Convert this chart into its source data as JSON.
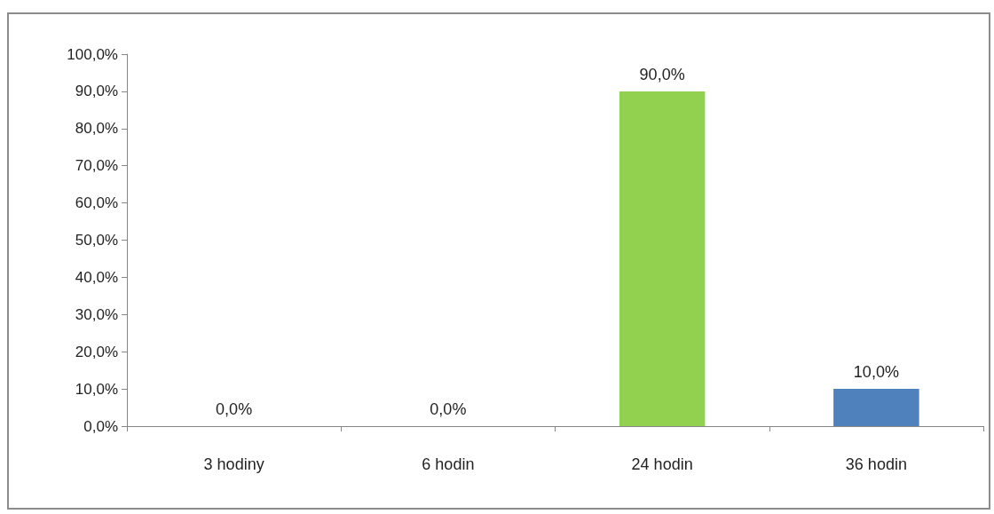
{
  "chart_data": {
    "type": "bar",
    "categories": [
      "3 hodiny",
      "6 hodin",
      "24 hodin",
      "36 hodin"
    ],
    "values": [
      0,
      0,
      90,
      10
    ],
    "colors": [
      "#92d050",
      "#92d050",
      "#92d050",
      "#4f81bd"
    ],
    "value_labels": [
      "0,0%",
      "0,0%",
      "90,0%",
      "10,0%"
    ],
    "ylim": [
      0,
      100
    ],
    "yticks": [
      {
        "value": 0,
        "label": "0,0%"
      },
      {
        "value": 10,
        "label": "10,0%"
      },
      {
        "value": 20,
        "label": "20,0%"
      },
      {
        "value": 30,
        "label": "30,0%"
      },
      {
        "value": 40,
        "label": "40,0%"
      },
      {
        "value": 50,
        "label": "50,0%"
      },
      {
        "value": 60,
        "label": "60,0%"
      },
      {
        "value": 70,
        "label": "70,0%"
      },
      {
        "value": 80,
        "label": "80,0%"
      },
      {
        "value": 90,
        "label": "90,0%"
      },
      {
        "value": 100,
        "label": "100,0%"
      }
    ],
    "grid": false
  }
}
